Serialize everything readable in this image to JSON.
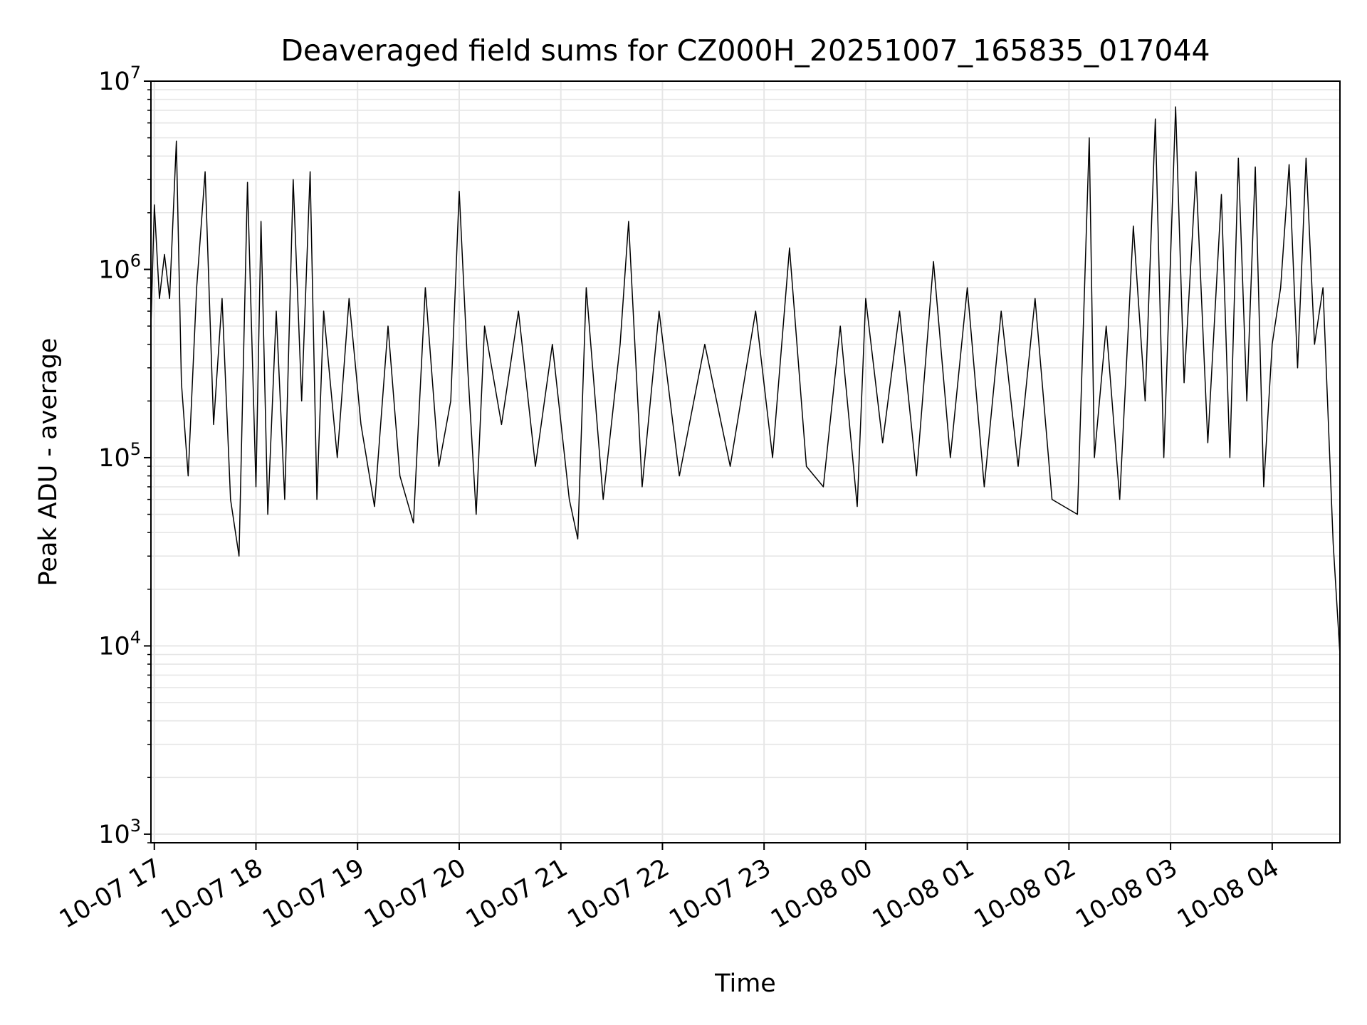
{
  "chart_data": {
    "type": "line",
    "title": "Deaveraged field sums for CZ000H_20251007_165835_017044",
    "xlabel": "Time",
    "ylabel": "Peak ADU - average",
    "yscale": "log",
    "grid": true,
    "ylim": [
      900,
      10000000
    ],
    "xlim": [
      "2025-10-07 16:58",
      "2025-10-08 04:40"
    ],
    "x_ticks": [
      {
        "value": "2025-10-07 17:00",
        "label": "10-07 17"
      },
      {
        "value": "2025-10-07 18:00",
        "label": "10-07 18"
      },
      {
        "value": "2025-10-07 19:00",
        "label": "10-07 19"
      },
      {
        "value": "2025-10-07 20:00",
        "label": "10-07 20"
      },
      {
        "value": "2025-10-07 21:00",
        "label": "10-07 21"
      },
      {
        "value": "2025-10-07 22:00",
        "label": "10-07 22"
      },
      {
        "value": "2025-10-07 23:00",
        "label": "10-07 23"
      },
      {
        "value": "2025-10-08 00:00",
        "label": "10-08 00"
      },
      {
        "value": "2025-10-08 01:00",
        "label": "10-08 01"
      },
      {
        "value": "2025-10-08 02:00",
        "label": "10-08 02"
      },
      {
        "value": "2025-10-08 03:00",
        "label": "10-08 03"
      },
      {
        "value": "2025-10-08 04:00",
        "label": "10-08 04"
      }
    ],
    "y_ticks": [
      {
        "value": 1000,
        "base": "10",
        "exp": "3"
      },
      {
        "value": 10000,
        "base": "10",
        "exp": "4"
      },
      {
        "value": 100000,
        "base": "10",
        "exp": "5"
      },
      {
        "value": 1000000,
        "base": "10",
        "exp": "6"
      },
      {
        "value": 10000000,
        "base": "10",
        "exp": "7"
      }
    ],
    "series": [
      {
        "color": "#000000",
        "points": [
          [
            "2025-10-07 16:58",
            500000
          ],
          [
            "2025-10-07 17:00",
            2200000
          ],
          [
            "2025-10-07 17:03",
            700000
          ],
          [
            "2025-10-07 17:06",
            1200000
          ],
          [
            "2025-10-07 17:09",
            700000
          ],
          [
            "2025-10-07 17:13",
            4800000
          ],
          [
            "2025-10-07 17:16",
            250000
          ],
          [
            "2025-10-07 17:20",
            80000
          ],
          [
            "2025-10-07 17:25",
            800000
          ],
          [
            "2025-10-07 17:30",
            3300000
          ],
          [
            "2025-10-07 17:35",
            150000
          ],
          [
            "2025-10-07 17:40",
            700000
          ],
          [
            "2025-10-07 17:45",
            60000
          ],
          [
            "2025-10-07 17:50",
            30000
          ],
          [
            "2025-10-07 17:55",
            2900000
          ],
          [
            "2025-10-07 18:00",
            70000
          ],
          [
            "2025-10-07 18:03",
            1800000
          ],
          [
            "2025-10-07 18:07",
            50000
          ],
          [
            "2025-10-07 18:12",
            600000
          ],
          [
            "2025-10-07 18:17",
            60000
          ],
          [
            "2025-10-07 18:22",
            3000000
          ],
          [
            "2025-10-07 18:27",
            200000
          ],
          [
            "2025-10-07 18:32",
            3300000
          ],
          [
            "2025-10-07 18:36",
            60000
          ],
          [
            "2025-10-07 18:40",
            600000
          ],
          [
            "2025-10-07 18:48",
            100000
          ],
          [
            "2025-10-07 18:55",
            700000
          ],
          [
            "2025-10-07 19:02",
            150000
          ],
          [
            "2025-10-07 19:10",
            55000
          ],
          [
            "2025-10-07 19:18",
            500000
          ],
          [
            "2025-10-07 19:25",
            80000
          ],
          [
            "2025-10-07 19:33",
            45000
          ],
          [
            "2025-10-07 19:40",
            800000
          ],
          [
            "2025-10-07 19:48",
            90000
          ],
          [
            "2025-10-07 19:55",
            200000
          ],
          [
            "2025-10-07 20:00",
            2600000
          ],
          [
            "2025-10-07 20:05",
            300000
          ],
          [
            "2025-10-07 20:10",
            50000
          ],
          [
            "2025-10-07 20:15",
            500000
          ],
          [
            "2025-10-07 20:25",
            150000
          ],
          [
            "2025-10-07 20:35",
            600000
          ],
          [
            "2025-10-07 20:45",
            90000
          ],
          [
            "2025-10-07 20:55",
            400000
          ],
          [
            "2025-10-07 21:05",
            60000
          ],
          [
            "2025-10-07 21:10",
            37000
          ],
          [
            "2025-10-07 21:15",
            800000
          ],
          [
            "2025-10-07 21:25",
            60000
          ],
          [
            "2025-10-07 21:35",
            400000
          ],
          [
            "2025-10-07 21:40",
            1800000
          ],
          [
            "2025-10-07 21:48",
            70000
          ],
          [
            "2025-10-07 21:58",
            600000
          ],
          [
            "2025-10-07 22:10",
            80000
          ],
          [
            "2025-10-07 22:25",
            400000
          ],
          [
            "2025-10-07 22:40",
            90000
          ],
          [
            "2025-10-07 22:55",
            600000
          ],
          [
            "2025-10-07 23:05",
            100000
          ],
          [
            "2025-10-07 23:15",
            1300000
          ],
          [
            "2025-10-07 23:25",
            90000
          ],
          [
            "2025-10-07 23:35",
            70000
          ],
          [
            "2025-10-07 23:45",
            500000
          ],
          [
            "2025-10-07 23:55",
            55000
          ],
          [
            "2025-10-08 00:00",
            700000
          ],
          [
            "2025-10-08 00:10",
            120000
          ],
          [
            "2025-10-08 00:20",
            600000
          ],
          [
            "2025-10-08 00:30",
            80000
          ],
          [
            "2025-10-08 00:40",
            1100000
          ],
          [
            "2025-10-08 00:50",
            100000
          ],
          [
            "2025-10-08 01:00",
            800000
          ],
          [
            "2025-10-08 01:10",
            70000
          ],
          [
            "2025-10-08 01:20",
            600000
          ],
          [
            "2025-10-08 01:30",
            90000
          ],
          [
            "2025-10-08 01:40",
            700000
          ],
          [
            "2025-10-08 01:50",
            60000
          ],
          [
            "2025-10-08 02:05",
            50000
          ],
          [
            "2025-10-08 02:12",
            5000000
          ],
          [
            "2025-10-08 02:15",
            100000
          ],
          [
            "2025-10-08 02:22",
            500000
          ],
          [
            "2025-10-08 02:30",
            60000
          ],
          [
            "2025-10-08 02:38",
            1700000
          ],
          [
            "2025-10-08 02:45",
            200000
          ],
          [
            "2025-10-08 02:51",
            6300000
          ],
          [
            "2025-10-08 02:56",
            100000
          ],
          [
            "2025-10-08 03:03",
            7300000
          ],
          [
            "2025-10-08 03:08",
            250000
          ],
          [
            "2025-10-08 03:15",
            3300000
          ],
          [
            "2025-10-08 03:22",
            120000
          ],
          [
            "2025-10-08 03:30",
            2500000
          ],
          [
            "2025-10-08 03:35",
            100000
          ],
          [
            "2025-10-08 03:40",
            3900000
          ],
          [
            "2025-10-08 03:45",
            200000
          ],
          [
            "2025-10-08 03:50",
            3500000
          ],
          [
            "2025-10-08 03:55",
            70000
          ],
          [
            "2025-10-08 04:00",
            400000
          ],
          [
            "2025-10-08 04:05",
            800000
          ],
          [
            "2025-10-08 04:10",
            3600000
          ],
          [
            "2025-10-08 04:15",
            300000
          ],
          [
            "2025-10-08 04:20",
            3900000
          ],
          [
            "2025-10-08 04:25",
            400000
          ],
          [
            "2025-10-08 04:30",
            800000
          ],
          [
            "2025-10-08 04:34",
            100000
          ],
          [
            "2025-10-08 04:36",
            35000
          ],
          [
            "2025-10-08 04:40",
            9000
          ]
        ]
      }
    ]
  }
}
